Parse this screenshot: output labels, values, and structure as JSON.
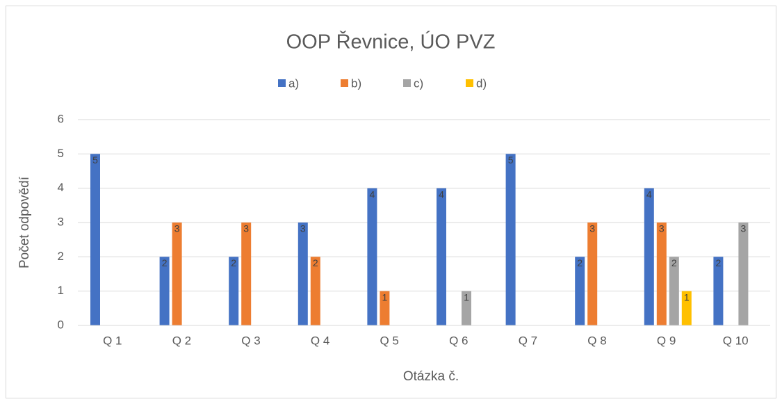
{
  "chart_data": {
    "type": "bar",
    "title": "OOP Řevnice, ÚO PVZ",
    "x_label": "Otázka č.",
    "y_label": "Počet odpovědí",
    "categories": [
      "Q 1",
      "Q 2",
      "Q 3",
      "Q 4",
      "Q 5",
      "Q 6",
      "Q 7",
      "Q 8",
      "Q 9",
      "Q 10"
    ],
    "series": [
      {
        "name": "a)",
        "color": "#4472c4",
        "values": [
          5,
          2,
          2,
          3,
          4,
          4,
          5,
          2,
          4,
          2
        ]
      },
      {
        "name": "b)",
        "color": "#ed7d31",
        "values": [
          0,
          3,
          3,
          2,
          1,
          0,
          0,
          3,
          3,
          0
        ]
      },
      {
        "name": "c)",
        "color": "#a5a5a5",
        "values": [
          0,
          0,
          0,
          0,
          0,
          1,
          0,
          0,
          2,
          3
        ]
      },
      {
        "name": "d)",
        "color": "#ffc000",
        "values": [
          0,
          0,
          0,
          0,
          0,
          0,
          0,
          0,
          1,
          0
        ]
      }
    ],
    "ylim": [
      0,
      6
    ],
    "yticks": [
      0,
      1,
      2,
      3,
      4,
      5,
      6
    ],
    "grid": true,
    "legend": "top"
  }
}
